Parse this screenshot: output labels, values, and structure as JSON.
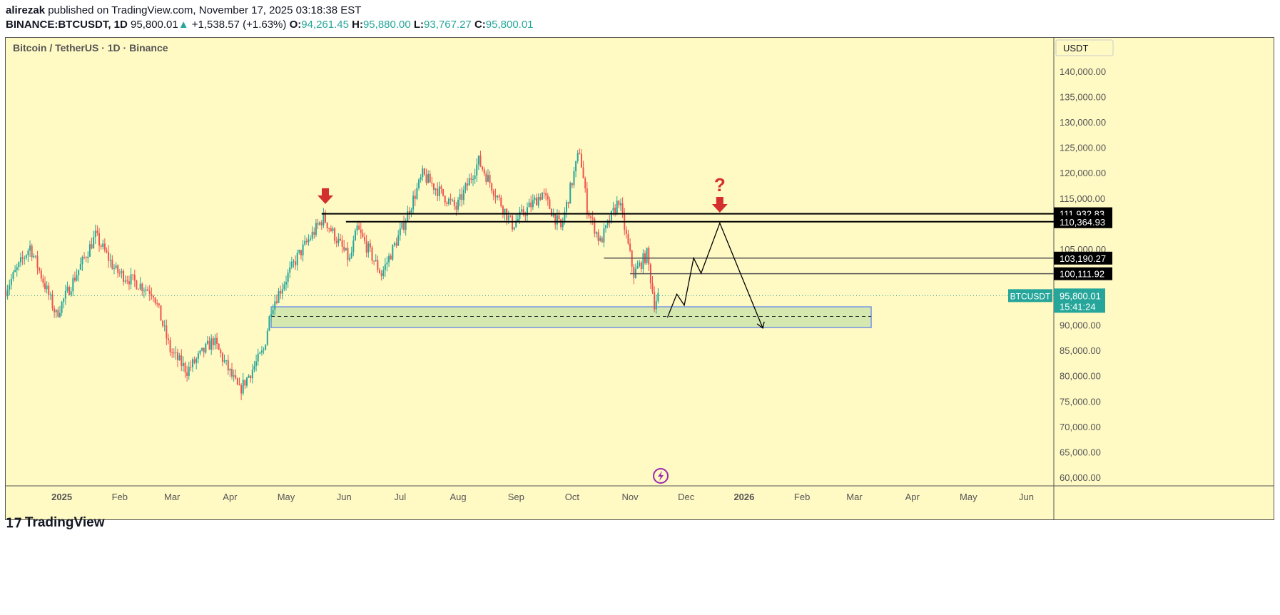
{
  "header": {
    "author": "alirezak",
    "published": "published on TradingView.com, November 17, 2025 03:18:38 EST",
    "symbol": "BINANCE:BTCUSDT, 1D",
    "last": "95,800.01",
    "change": "+1,538.57 (+1.63%)",
    "o_label": "O:",
    "o": "94,261.45",
    "h_label": "H:",
    "h": "95,880.00",
    "l_label": "L:",
    "l": "93,767.27",
    "c_label": "C:",
    "c": "95,800.01"
  },
  "chart_title": "Bitcoin / TetherUS · 1D · Binance",
  "footer": {
    "brand": "TradingView"
  },
  "colors": {
    "background": "#fff9c4",
    "up": "#26a69a",
    "down": "#ef5350",
    "zone": "#d4e8b0",
    "zone_border": "#5b7ff0",
    "arrow": "#d32f2f"
  },
  "chart_data": {
    "type": "candlestick",
    "currency": "USDT",
    "ylim": [
      58000,
      144000
    ],
    "y_ticks": [
      "140,000.00",
      "135,000.00",
      "130,000.00",
      "125,000.00",
      "120,000.00",
      "115,000.00",
      "105,000.00",
      "90,000.00",
      "85,000.00",
      "80,000.00",
      "75,000.00",
      "70,000.00",
      "65,000.00",
      "60,000.00"
    ],
    "y_tick_values": [
      140000,
      135000,
      130000,
      125000,
      120000,
      115000,
      105000,
      90000,
      85000,
      80000,
      75000,
      70000,
      65000,
      60000
    ],
    "x_ticks": [
      [
        "2025",
        "2025-01-01"
      ],
      [
        "Feb",
        "2025-02-01"
      ],
      [
        "Mar",
        "2025-03-01"
      ],
      [
        "Apr",
        "2025-04-01"
      ],
      [
        "May",
        "2025-05-01"
      ],
      [
        "Jun",
        "2025-06-01"
      ],
      [
        "Jul",
        "2025-07-01"
      ],
      [
        "Aug",
        "2025-08-01"
      ],
      [
        "Sep",
        "2025-09-01"
      ],
      [
        "Oct",
        "2025-10-01"
      ],
      [
        "Nov",
        "2025-11-01"
      ],
      [
        "Dec",
        "2025-12-01"
      ],
      [
        "2026",
        "2026-01-01"
      ],
      [
        "Feb",
        "2026-02-01"
      ],
      [
        "Mar",
        "2026-03-01"
      ],
      [
        "Apr",
        "2026-04-01"
      ],
      [
        "May",
        "2026-05-01"
      ],
      [
        "Jun",
        "2026-06-01"
      ]
    ],
    "x_start": "2024-12-02",
    "price_path": [
      [
        "2024-12-02",
        96400
      ],
      [
        "2024-12-16",
        105500
      ],
      [
        "2024-12-30",
        92000
      ],
      [
        "2025-01-20",
        107600
      ],
      [
        "2025-01-31",
        100600
      ],
      [
        "2025-02-20",
        96400
      ],
      [
        "2025-03-01",
        85000
      ],
      [
        "2025-03-10",
        81000
      ],
      [
        "2025-03-24",
        87000
      ],
      [
        "2025-04-07",
        77000
      ],
      [
        "2025-04-20",
        85000
      ],
      [
        "2025-04-24",
        93500
      ],
      [
        "2025-05-08",
        103400
      ],
      [
        "2025-05-22",
        111200
      ],
      [
        "2025-06-05",
        102700
      ],
      [
        "2025-06-09",
        109000
      ],
      [
        "2025-06-22",
        100000
      ],
      [
        "2025-07-03",
        109000
      ],
      [
        "2025-07-14",
        119600
      ],
      [
        "2025-08-01",
        113000
      ],
      [
        "2025-08-13",
        122300
      ],
      [
        "2025-08-31",
        109700
      ],
      [
        "2025-09-16",
        116000
      ],
      [
        "2025-09-26",
        109000
      ],
      [
        "2025-10-06",
        124500
      ],
      [
        "2025-10-10",
        113000
      ],
      [
        "2025-10-17",
        106300
      ],
      [
        "2025-10-27",
        114700
      ],
      [
        "2025-11-04",
        100000
      ],
      [
        "2025-11-11",
        104000
      ],
      [
        "2025-11-15",
        94300
      ],
      [
        "2025-11-17",
        95800
      ]
    ],
    "levels": [
      {
        "price": 111932.83,
        "label": "111,932.83",
        "from": "2025-05-20"
      },
      {
        "price": 110364.93,
        "label": "110,364.93",
        "from": "2025-06-02"
      },
      {
        "price": 103190.27,
        "label": "103,190.27",
        "from": "2025-10-18"
      },
      {
        "price": 100111.92,
        "label": "100,111.92",
        "from": "2025-11-01"
      }
    ],
    "zone": {
      "from": "2025-04-23",
      "to": "2026-03-10",
      "top": 93600,
      "bottom": 89500,
      "mid": 91700
    },
    "projection": [
      [
        "2025-11-21",
        91500
      ],
      [
        "2025-11-26",
        96100
      ],
      [
        "2025-11-30",
        93900
      ],
      [
        "2025-12-05",
        103200
      ],
      [
        "2025-12-09",
        100200
      ],
      [
        "2025-12-19",
        110100
      ],
      [
        "2026-01-11",
        89400
      ]
    ],
    "arrows": [
      [
        "2025-05-22",
        114700
      ],
      [
        "2025-12-19",
        113000
      ]
    ],
    "question_mark": "?",
    "last_price": {
      "symbol": "BTCUSDT",
      "value": "95,800.01",
      "countdown": "15:41:24",
      "price": 95800
    }
  }
}
